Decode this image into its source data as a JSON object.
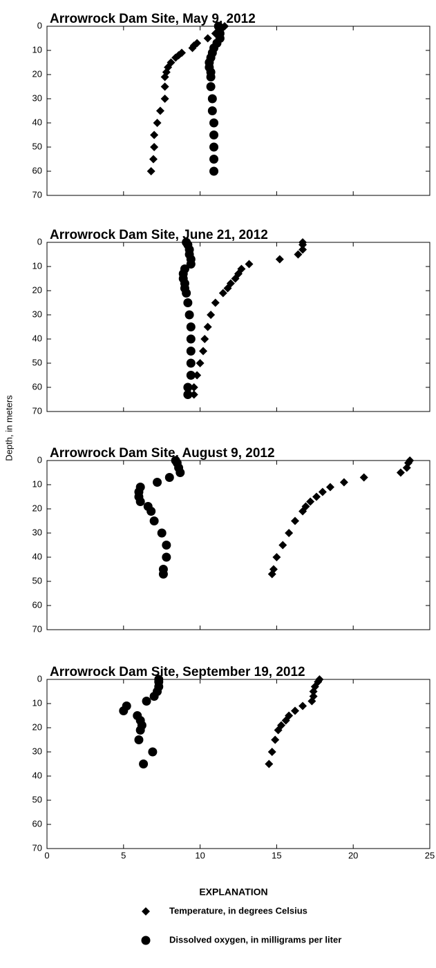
{
  "ylabel": "Depth, in meters",
  "legend_title": "EXPLANATION",
  "chart_data": [
    {
      "type": "scatter",
      "title": "Arrowrock Dam Site, May 9, 2012",
      "xlim": [
        0,
        25
      ],
      "xticks": [
        0,
        5,
        10,
        15,
        20,
        25
      ],
      "show_xtick_labels": false,
      "ylim": [
        0,
        70
      ],
      "yticks": [
        0,
        10,
        20,
        30,
        40,
        50,
        60,
        70
      ],
      "y_inverted": true,
      "series": [
        {
          "name": "Temperature, in degrees Celsius",
          "marker": "diamond",
          "color": "#000000",
          "x": [
            11.6,
            11.4,
            11.0,
            10.5,
            9.8,
            9.6,
            9.5,
            8.8,
            8.6,
            8.4,
            8.1,
            7.9,
            7.8,
            7.7,
            7.7,
            7.7,
            7.4,
            7.2,
            7.0,
            7.0,
            6.95,
            6.8
          ],
          "y": [
            0,
            1,
            3,
            5,
            7,
            8,
            9,
            11,
            12,
            13,
            15,
            17,
            19,
            21,
            25,
            30,
            35,
            40,
            45,
            50,
            55,
            60
          ]
        },
        {
          "name": "Dissolved oxygen, in milligrams per liter",
          "marker": "circle",
          "color": "#000000",
          "x": [
            11.2,
            11.3,
            11.3,
            11.3,
            11.1,
            10.9,
            10.8,
            10.7,
            10.6,
            10.6,
            10.7,
            10.7,
            10.7,
            10.8,
            10.8,
            10.9,
            10.9,
            10.9,
            10.9,
            10.9
          ],
          "y": [
            0,
            1,
            3,
            5,
            7,
            9,
            11,
            13,
            15,
            17,
            19,
            21,
            25,
            30,
            35,
            40,
            45,
            50,
            55,
            60
          ]
        }
      ]
    },
    {
      "type": "scatter",
      "title": "Arrowrock Dam Site, June 21, 2012",
      "xlim": [
        0,
        25
      ],
      "xticks": [
        0,
        5,
        10,
        15,
        20,
        25
      ],
      "show_xtick_labels": false,
      "ylim": [
        0,
        70
      ],
      "yticks": [
        0,
        10,
        20,
        30,
        40,
        50,
        60,
        70
      ],
      "y_inverted": true,
      "series": [
        {
          "marker": "diamond",
          "color": "#000000",
          "x": [
            16.7,
            16.7,
            16.7,
            16.4,
            15.2,
            13.2,
            12.7,
            12.5,
            12.3,
            12.0,
            11.8,
            11.5,
            11.0,
            10.7,
            10.5,
            10.3,
            10.2,
            10.0,
            9.8,
            9.6,
            9.6
          ],
          "y": [
            0,
            1,
            3,
            5,
            7,
            9,
            11,
            13,
            15,
            17,
            19,
            21,
            25,
            30,
            35,
            40,
            45,
            50,
            55,
            60,
            63
          ]
        },
        {
          "marker": "circle",
          "color": "#000000",
          "x": [
            9.1,
            9.2,
            9.3,
            9.3,
            9.4,
            9.4,
            9.0,
            8.9,
            8.9,
            9.0,
            9.0,
            9.1,
            9.2,
            9.3,
            9.4,
            9.4,
            9.4,
            9.4,
            9.4,
            9.2,
            9.2
          ],
          "y": [
            0,
            1,
            3,
            5,
            7,
            9,
            11,
            13,
            15,
            17,
            19,
            21,
            25,
            30,
            35,
            40,
            45,
            50,
            55,
            60,
            63
          ]
        }
      ]
    },
    {
      "type": "scatter",
      "title": "Arrowrock Dam Site, August 9, 2012",
      "xlim": [
        0,
        25
      ],
      "xticks": [
        0,
        5,
        10,
        15,
        20,
        25
      ],
      "show_xtick_labels": false,
      "ylim": [
        0,
        70
      ],
      "yticks": [
        0,
        10,
        20,
        30,
        40,
        50,
        60,
        70
      ],
      "y_inverted": true,
      "series": [
        {
          "marker": "diamond",
          "color": "#000000",
          "x": [
            23.7,
            23.6,
            23.5,
            23.1,
            20.7,
            19.4,
            18.5,
            18.0,
            17.6,
            17.2,
            16.9,
            16.7,
            16.2,
            15.8,
            15.4,
            15.0,
            14.8,
            14.7
          ],
          "y": [
            0,
            1,
            3,
            5,
            7,
            9,
            11,
            13,
            15,
            17,
            19,
            21,
            25,
            30,
            35,
            40,
            45,
            47
          ]
        },
        {
          "marker": "circle",
          "color": "#000000",
          "x": [
            8.4,
            8.5,
            8.6,
            8.7,
            8.0,
            7.2,
            6.1,
            6.0,
            6.0,
            6.1,
            6.6,
            6.8,
            7.0,
            7.5,
            7.8,
            7.8,
            7.6,
            7.6
          ],
          "y": [
            0,
            1,
            3,
            5,
            7,
            9,
            11,
            13,
            15,
            17,
            19,
            21,
            25,
            30,
            35,
            40,
            45,
            47
          ]
        }
      ]
    },
    {
      "type": "scatter",
      "title": "Arrowrock Dam Site, September 19, 2012",
      "xlim": [
        0,
        25
      ],
      "xticks": [
        0,
        5,
        10,
        15,
        20,
        25
      ],
      "show_xtick_labels": true,
      "ylim": [
        0,
        70
      ],
      "yticks": [
        0,
        10,
        20,
        30,
        40,
        50,
        60,
        70
      ],
      "y_inverted": true,
      "series": [
        {
          "marker": "diamond",
          "color": "#000000",
          "x": [
            17.8,
            17.7,
            17.5,
            17.4,
            17.4,
            17.3,
            16.7,
            16.2,
            15.8,
            15.6,
            15.3,
            15.1,
            14.9,
            14.7,
            14.5
          ],
          "y": [
            0,
            1,
            3,
            5,
            7,
            9,
            11,
            13,
            15,
            17,
            19,
            21,
            25,
            30,
            35
          ]
        },
        {
          "marker": "circle",
          "color": "#000000",
          "x": [
            7.3,
            7.3,
            7.3,
            7.2,
            7.0,
            6.5,
            5.2,
            5.0,
            5.9,
            6.1,
            6.2,
            6.1,
            6.0,
            6.9,
            6.3
          ],
          "y": [
            0,
            1,
            3,
            5,
            7,
            9,
            11,
            13,
            15,
            17,
            19,
            21,
            25,
            30,
            35
          ]
        }
      ]
    }
  ]
}
